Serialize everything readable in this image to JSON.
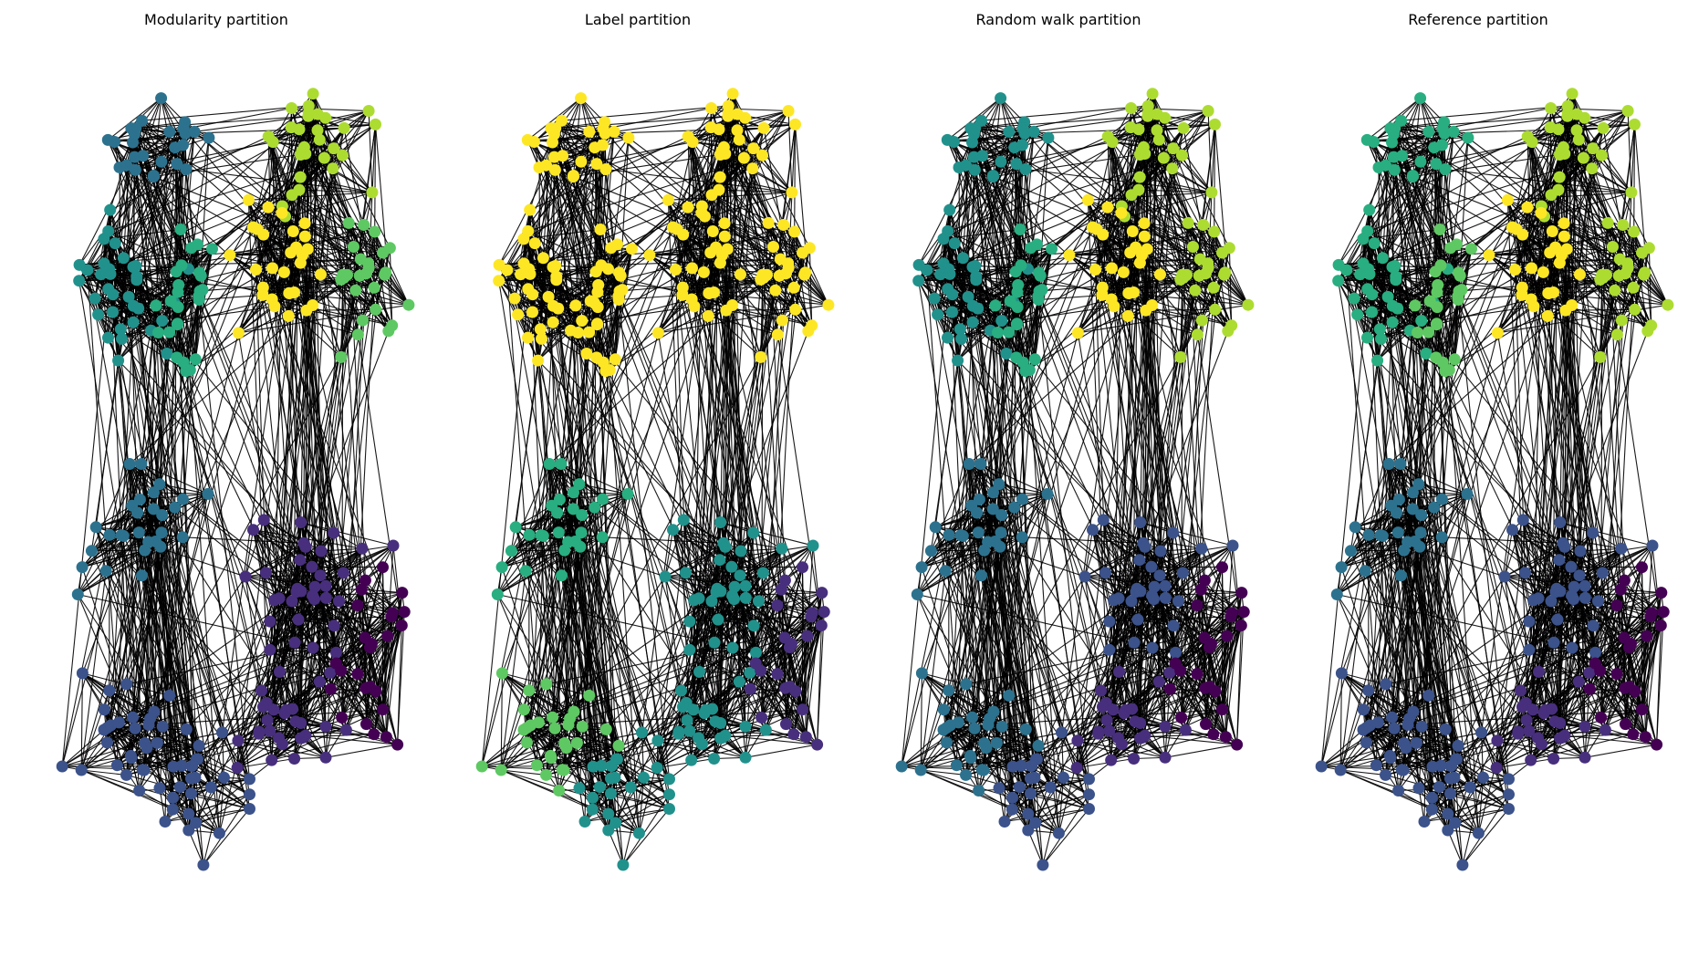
{
  "figure": {
    "panels": [
      {
        "title": "Modularity partition",
        "colormap": "modularity"
      },
      {
        "title": "Label partition",
        "colormap": "label"
      },
      {
        "title": "Random walk partition",
        "colormap": "randomwalk"
      },
      {
        "title": "Reference partition",
        "colormap": "reference"
      }
    ],
    "colors": {
      "community_palette": [
        "#440154",
        "#472f7d",
        "#3b528b",
        "#2c728e",
        "#21918c",
        "#28ae80",
        "#5ec962",
        "#addc30",
        "#fde725"
      ],
      "edge": "#000000",
      "background": "#ffffff"
    }
  }
}
